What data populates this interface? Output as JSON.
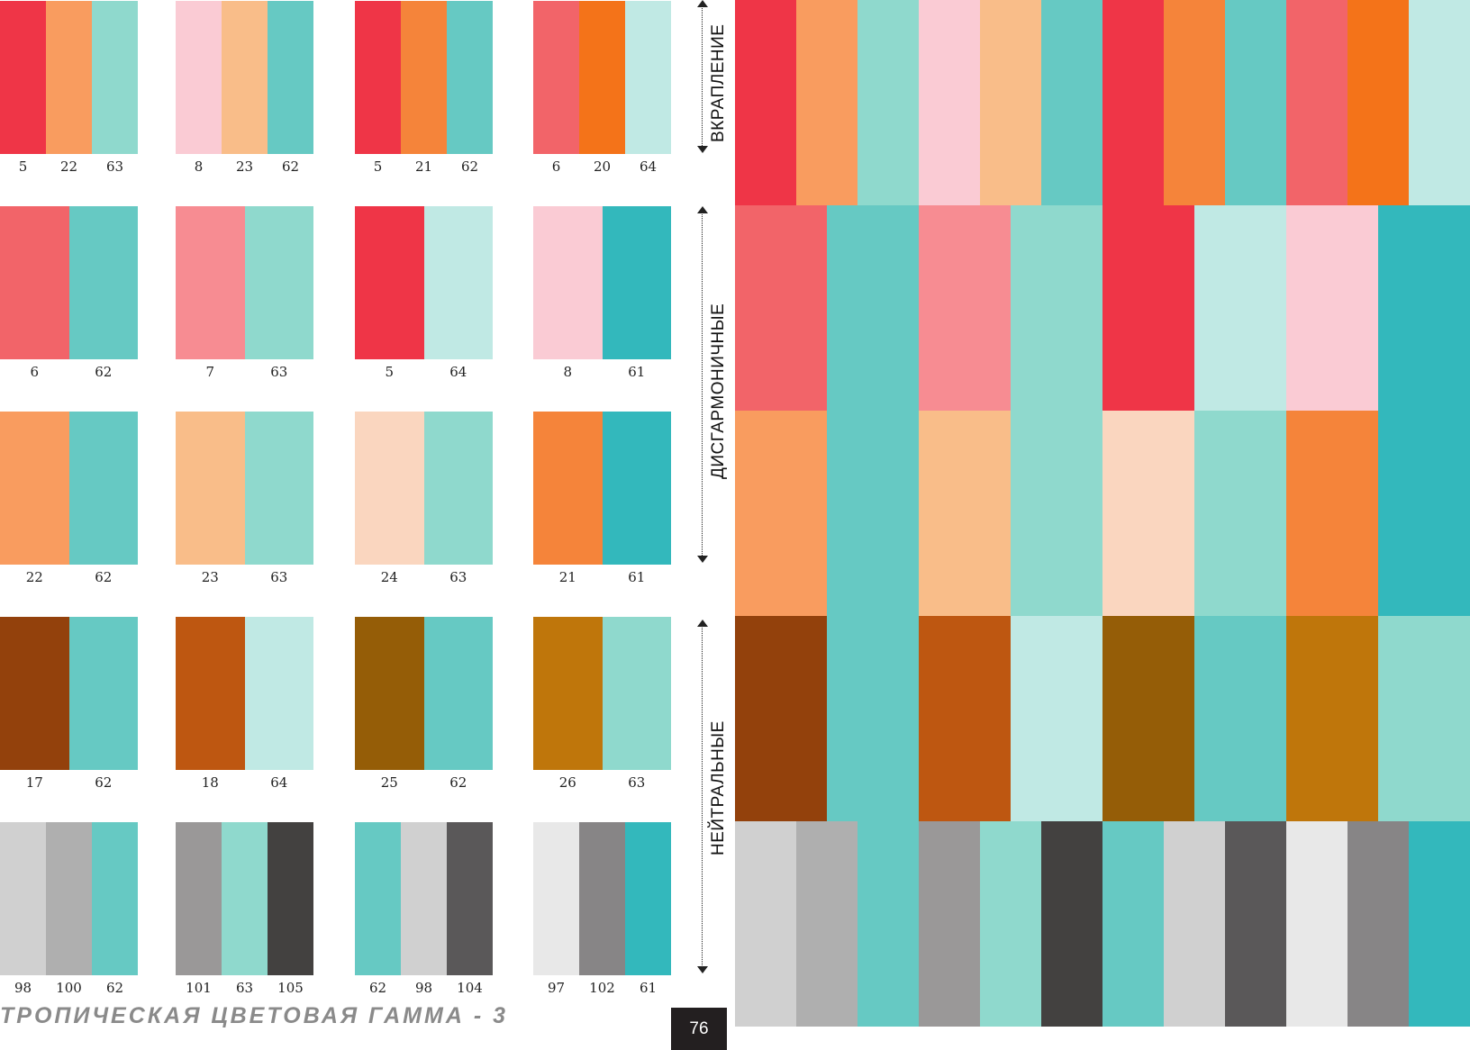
{
  "colors": {
    "red": "#ef3547",
    "coral": "#f26469",
    "pink": "#f78c92",
    "light_pink": "#facbd4",
    "peach": "#f99c5f",
    "light_peach": "#f9bd89",
    "cream": "#fad6bf",
    "orange": "#f5843a",
    "dark_orange": "#f47319",
    "mint": "#8fd9cd",
    "pale_mint": "#c0e9e4",
    "teal": "#66c9c3",
    "turquoise": "#33b8bc",
    "brown": "#93410c",
    "rust": "#be5711",
    "olive_brown": "#955d07",
    "ochre": "#bf760b",
    "grey_light": "#d0d0d0",
    "grey_mid": "#afafaf",
    "grey": "#9a9898",
    "grey_dark": "#434140",
    "grey_charcoal": "#5a5859",
    "grey_pale": "#e8e8e8",
    "grey_medium": "#878586"
  },
  "swatches": [
    {
      "blocks": [
        "#ef3547",
        "#f99c5f",
        "#8fd9cd"
      ],
      "numbers": [
        "5",
        "22",
        "63"
      ]
    },
    {
      "blocks": [
        "#facbd4",
        "#f9bd89",
        "#66c9c3"
      ],
      "numbers": [
        "8",
        "23",
        "62"
      ]
    },
    {
      "blocks": [
        "#ef3547",
        "#f5843a",
        "#66c9c3"
      ],
      "numbers": [
        "5",
        "21",
        "62"
      ]
    },
    {
      "blocks": [
        "#f26469",
        "#f47319",
        "#c0e9e4"
      ],
      "numbers": [
        "6",
        "20",
        "64"
      ]
    },
    {
      "blocks": [
        "#f26469",
        "#66c9c3"
      ],
      "numbers": [
        "6",
        "62"
      ]
    },
    {
      "blocks": [
        "#f78c92",
        "#8fd9cd"
      ],
      "numbers": [
        "7",
        "63"
      ]
    },
    {
      "blocks": [
        "#ef3547",
        "#c0e9e4"
      ],
      "numbers": [
        "5",
        "64"
      ]
    },
    {
      "blocks": [
        "#facbd4",
        "#33b8bc"
      ],
      "numbers": [
        "8",
        "61"
      ]
    },
    {
      "blocks": [
        "#f99c5f",
        "#66c9c3"
      ],
      "numbers": [
        "22",
        "62"
      ]
    },
    {
      "blocks": [
        "#f9bd89",
        "#8fd9cd"
      ],
      "numbers": [
        "23",
        "63"
      ]
    },
    {
      "blocks": [
        "#fad6bf",
        "#8fd9cd"
      ],
      "numbers": [
        "24",
        "63"
      ]
    },
    {
      "blocks": [
        "#f5843a",
        "#33b8bc"
      ],
      "numbers": [
        "21",
        "61"
      ]
    },
    {
      "blocks": [
        "#93410c",
        "#66c9c3"
      ],
      "numbers": [
        "17",
        "62"
      ]
    },
    {
      "blocks": [
        "#be5711",
        "#c0e9e4"
      ],
      "numbers": [
        "18",
        "64"
      ]
    },
    {
      "blocks": [
        "#955d07",
        "#66c9c3"
      ],
      "numbers": [
        "25",
        "62"
      ]
    },
    {
      "blocks": [
        "#bf760b",
        "#8fd9cd"
      ],
      "numbers": [
        "26",
        "63"
      ]
    },
    {
      "blocks": [
        "#d0d0d0",
        "#afafaf",
        "#66c9c3"
      ],
      "numbers": [
        "98",
        "100",
        "62"
      ]
    },
    {
      "blocks": [
        "#9a9898",
        "#8fd9cd",
        "#434140"
      ],
      "numbers": [
        "101",
        "63",
        "105"
      ]
    },
    {
      "blocks": [
        "#66c9c3",
        "#d0d0d0",
        "#5a5859"
      ],
      "numbers": [
        "62",
        "98",
        "104"
      ]
    },
    {
      "blocks": [
        "#e8e8e8",
        "#878586",
        "#33b8bc"
      ],
      "numbers": [
        "97",
        "102",
        "61"
      ]
    }
  ],
  "labels": {
    "inclusion": "ВКРАПЛЕНИЕ",
    "disharmonic": "ДИСГАРМОНИЧНЫЕ",
    "neutral": "НЕЙТРАЛЬНЫЕ"
  },
  "title": "ТРОПИЧЕСКАЯ ЦВЕТОВАЯ ГАММА - 3",
  "page_number": "76",
  "big_panel": {
    "rows": [
      [
        "#ef3547",
        "#f99c5f",
        "#8fd9cd",
        "#facbd4",
        "#f9bd89",
        "#66c9c3",
        "#ef3547",
        "#f5843a",
        "#66c9c3",
        "#f26469",
        "#f47319",
        "#c0e9e4"
      ],
      [
        "#f26469",
        "#66c9c3",
        "#f78c92",
        "#8fd9cd",
        "#ef3547",
        "#c0e9e4",
        "#facbd4",
        "#33b8bc"
      ],
      [
        "#f99c5f",
        "#66c9c3",
        "#f9bd89",
        "#8fd9cd",
        "#fad6bf",
        "#8fd9cd",
        "#f5843a",
        "#33b8bc"
      ],
      [
        "#93410c",
        "#66c9c3",
        "#be5711",
        "#c0e9e4",
        "#955d07",
        "#66c9c3",
        "#bf760b",
        "#8fd9cd"
      ],
      [
        "#d0d0d0",
        "#afafaf",
        "#66c9c3",
        "#9a9898",
        "#8fd9cd",
        "#434140",
        "#66c9c3",
        "#d0d0d0",
        "#5a5859",
        "#e8e8e8",
        "#878586",
        "#33b8bc"
      ]
    ]
  }
}
